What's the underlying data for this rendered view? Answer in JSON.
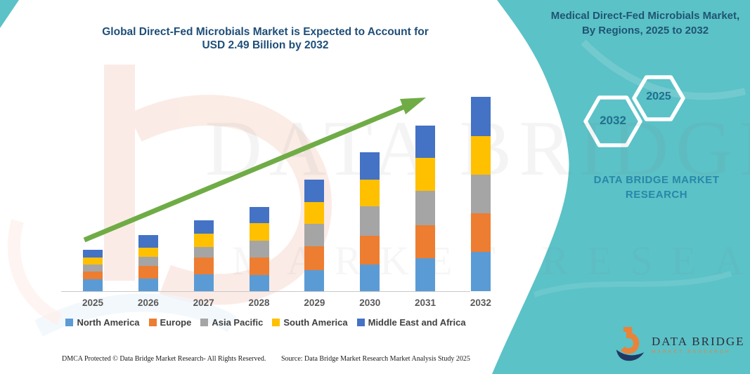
{
  "header": {
    "title_line1": "Global Direct-Fed Microbials Market is Expected to Account for",
    "title_line2": "USD 2.49 Billion by 2032"
  },
  "side_panel": {
    "background_color": "#5BC2C7",
    "title": "Medical Direct-Fed Microbials Market, By Regions, 2025 to 2032",
    "hexagon_back_label": "2032",
    "hexagon_front_label": "2025",
    "brand_text": "DATA BRIDGE MARKET RESEARCH"
  },
  "chart_data": {
    "type": "bar",
    "stacked": true,
    "title": "Global Direct-Fed Microbials Market is Expected to Account for USD 2.49 Billion by 2032",
    "unit": "USD Billion",
    "xlabel": "",
    "ylabel": "",
    "ylim": [
      0,
      2.56
    ],
    "grid": false,
    "legend_position": "bottom",
    "categories": [
      "2025",
      "2026",
      "2027",
      "2028",
      "2029",
      "2030",
      "2031",
      "2032"
    ],
    "series": [
      {
        "name": "North America",
        "color": "#5B9BD5",
        "values": [
          0.15,
          0.16,
          0.22,
          0.21,
          0.27,
          0.34,
          0.42,
          0.5
        ]
      },
      {
        "name": "Europe",
        "color": "#ED7D31",
        "values": [
          0.1,
          0.16,
          0.21,
          0.22,
          0.31,
          0.37,
          0.43,
          0.5
        ]
      },
      {
        "name": "Asia Pacific",
        "color": "#A5A5A5",
        "values": [
          0.09,
          0.12,
          0.14,
          0.22,
          0.28,
          0.38,
          0.44,
          0.49
        ]
      },
      {
        "name": "South America",
        "color": "#FFC000",
        "values": [
          0.09,
          0.12,
          0.17,
          0.22,
          0.28,
          0.34,
          0.42,
          0.5
        ]
      },
      {
        "name": "Middle East and Africa",
        "color": "#4472C4",
        "values": [
          0.1,
          0.16,
          0.17,
          0.21,
          0.29,
          0.35,
          0.41,
          0.5
        ]
      }
    ],
    "totals": [
      0.53,
      0.72,
      0.91,
      1.08,
      1.43,
      1.78,
      2.12,
      2.49
    ],
    "annotations": {
      "trend_arrow": true,
      "arrow_color": "#6FAC46"
    }
  },
  "watermark": {
    "line1": "DATA BRIDGE",
    "line2": "MARKET RESEARCH"
  },
  "footer": {
    "dmca": "DMCA Protected © Data Bridge Market Research-  All Rights Reserved.",
    "source": "Source: Data Bridge Market Research  Market Analysis Study 2025"
  },
  "logo": {
    "name": "DATA BRIDGE",
    "subtitle": "MARKET RESEARCH"
  }
}
